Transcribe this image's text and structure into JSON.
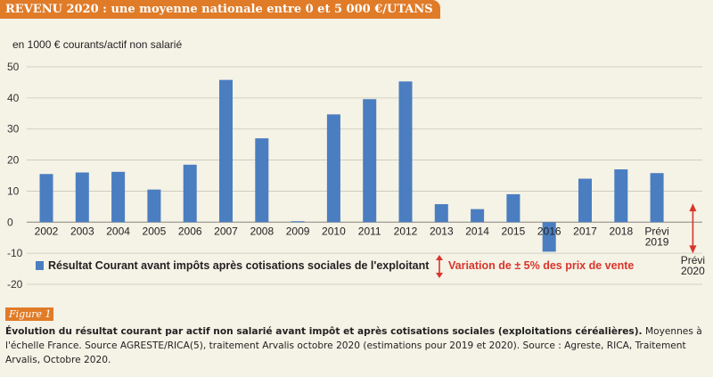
{
  "banner": {
    "title": "REVENU 2020 : une moyenne nationale entre 0 et 5 000 €/UTANS"
  },
  "chart_data": {
    "type": "bar",
    "unit_label": "en 1000 € courants/actif non salarié",
    "categories": [
      "2002",
      "2003",
      "2004",
      "2005",
      "2006",
      "2007",
      "2008",
      "2009",
      "2010",
      "2011",
      "2012",
      "2013",
      "2014",
      "2015",
      "2016",
      "2017",
      "2018",
      "Prévi 2019"
    ],
    "series": [
      {
        "name": "Résultat Courant avant impôts après cotisations sociales de l'exploitant",
        "color": "#4a7ec0",
        "values": [
          15.5,
          16,
          16.2,
          10.5,
          18.5,
          45.8,
          27,
          0.3,
          34.7,
          39.6,
          45.3,
          5.8,
          4.2,
          9,
          -9.5,
          14,
          17,
          15.8
        ]
      }
    ],
    "extra_category": "Prévi 2020",
    "range_marker": {
      "label": "Variation de ± 5% des prix de vente",
      "color": "#d9352b"
    },
    "ylim": [
      -20,
      50
    ],
    "yticks": [
      -20,
      -10,
      0,
      10,
      20,
      30,
      40,
      50
    ],
    "grid": true,
    "legend_position": "bottom"
  },
  "figure": {
    "tag": "Figure 1",
    "caption_bold": "Évolution du résultat courant par actif non salarié avant impôt et après cotisations sociales (exploitations céréalières).",
    "caption_text": " Moyennes à l'échelle France. Source AGRESTE/RICA(5), traitement Arvalis octobre 2020 (estimations pour 2019 et 2020).  Source : Agreste, RICA, Traitement Arvalis, Octobre 2020."
  }
}
